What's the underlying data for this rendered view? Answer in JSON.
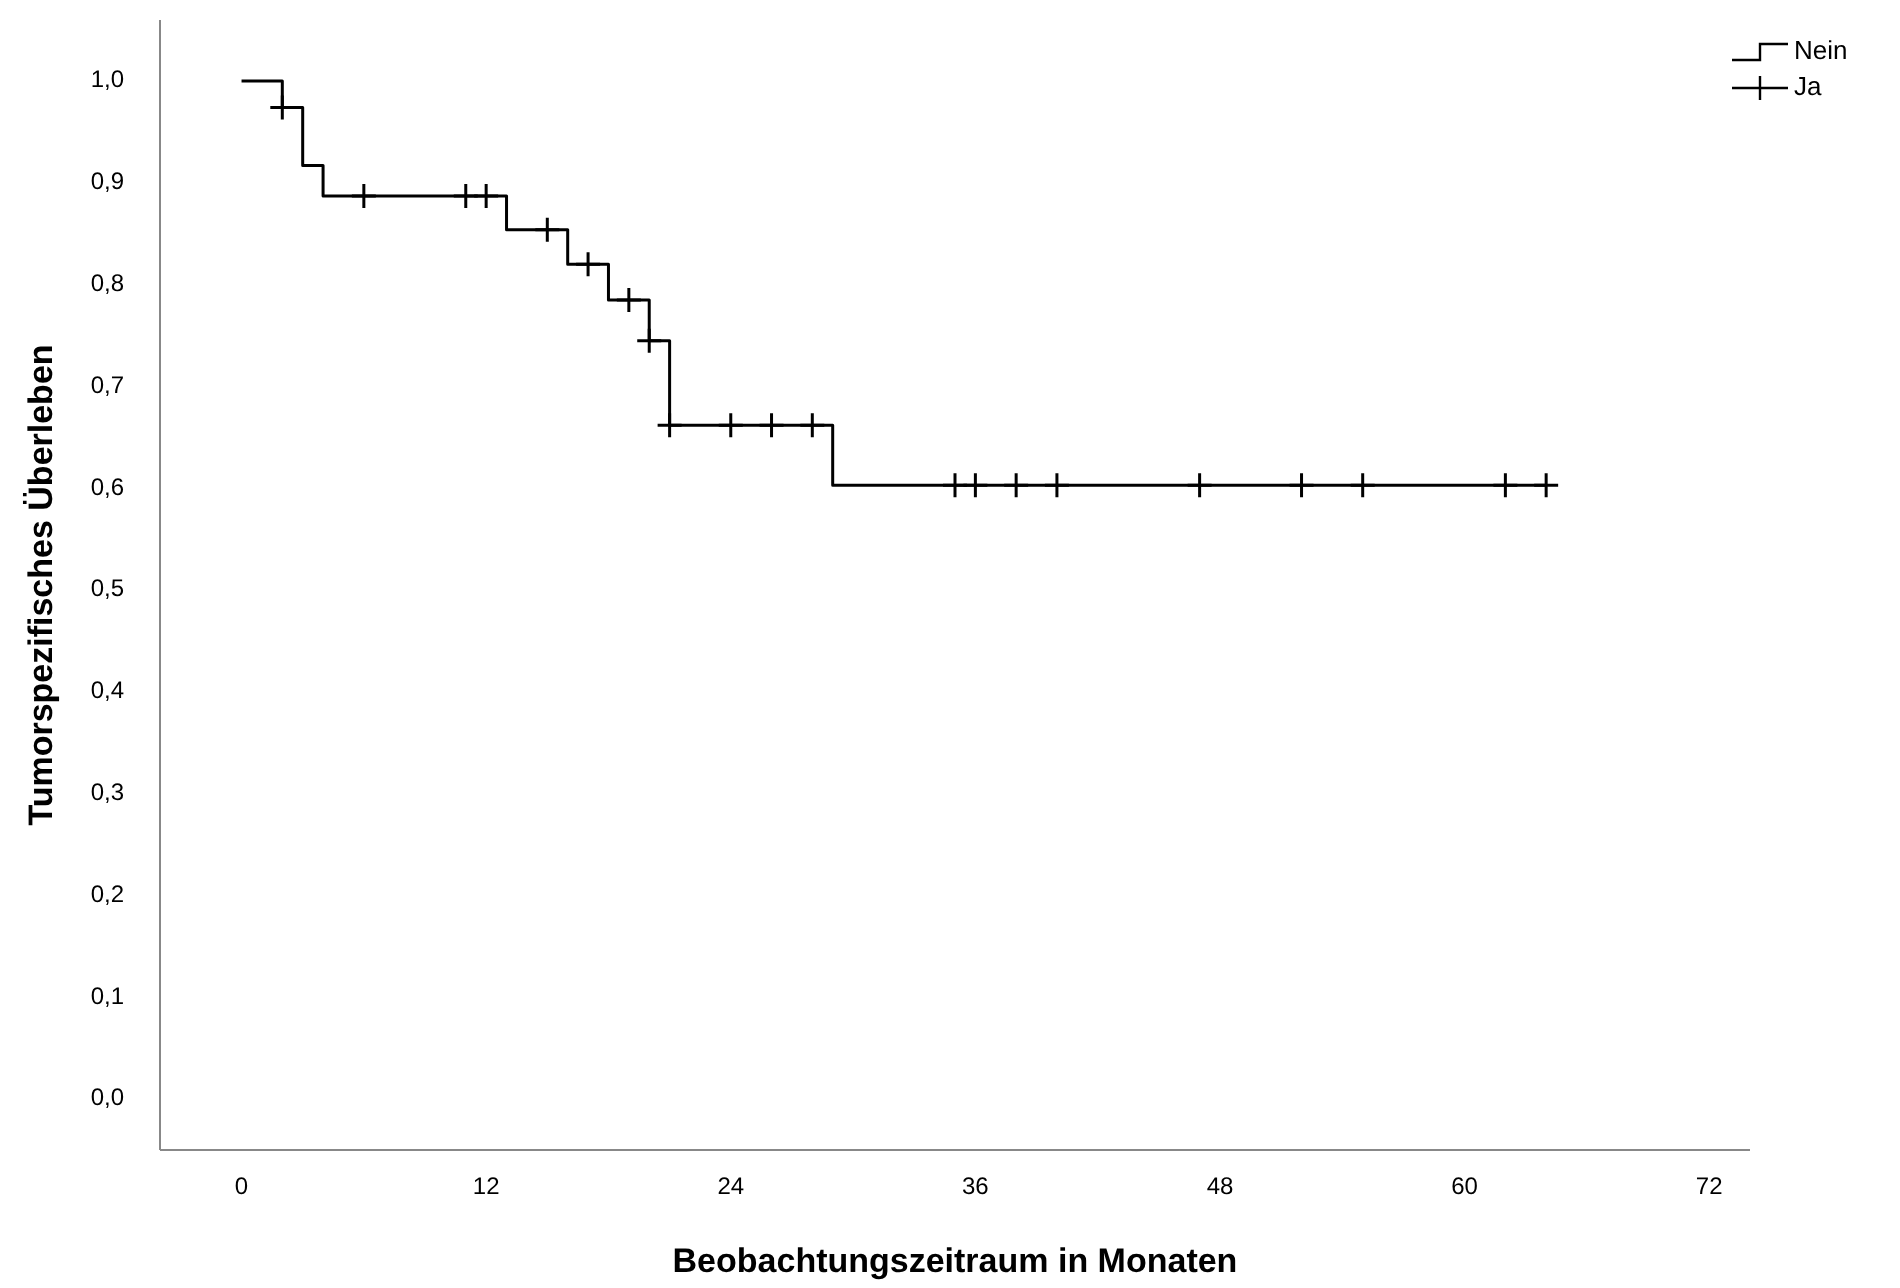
{
  "chart_data": {
    "type": "step",
    "xlabel": "Beobachtungszeitraum in Monaten",
    "ylabel": "Tumorspezifisches Überleben",
    "xlim": [
      -4,
      74
    ],
    "ylim": [
      -0.05,
      1.06
    ],
    "xticks": [
      0,
      12,
      24,
      36,
      48,
      60,
      72
    ],
    "yticks": [
      {
        "value": 0,
        "label": "0,0"
      },
      {
        "value": 0.1,
        "label": "0,1"
      },
      {
        "value": 0.2,
        "label": "0,2"
      },
      {
        "value": 0.3,
        "label": "0,3"
      },
      {
        "value": 0.4,
        "label": "0,4"
      },
      {
        "value": 0.5,
        "label": "0,5"
      },
      {
        "value": 0.6,
        "label": "0,6"
      },
      {
        "value": 0.7,
        "label": "0,7"
      },
      {
        "value": 0.8,
        "label": "0,8"
      },
      {
        "value": 0.9,
        "label": "0,9"
      },
      {
        "value": 1,
        "label": "1,0"
      }
    ],
    "grid": false,
    "legend": "top right",
    "series": [
      {
        "name": "Nein",
        "color": "#000000",
        "line_style": "solid",
        "x": [
          0,
          2,
          3,
          4,
          13,
          16,
          18,
          20,
          21,
          29,
          64
        ],
        "values": [
          1.0,
          0.974,
          0.917,
          0.887,
          0.854,
          0.82,
          0.785,
          0.745,
          0.662,
          0.603,
          0.603
        ]
      },
      {
        "name": "Ja",
        "type": "scatter",
        "color": "#000000",
        "marker": "cross",
        "x": [
          2,
          6,
          11,
          12,
          15,
          17,
          19,
          20,
          21,
          24,
          26,
          28,
          35,
          36,
          38,
          40,
          47,
          52,
          55,
          62,
          64
        ],
        "values": [
          0.974,
          0.887,
          0.887,
          0.887,
          0.854,
          0.82,
          0.785,
          0.745,
          0.662,
          0.662,
          0.662,
          0.662,
          0.603,
          0.603,
          0.603,
          0.603,
          0.603,
          0.603,
          0.603,
          0.603,
          0.603
        ]
      }
    ]
  }
}
